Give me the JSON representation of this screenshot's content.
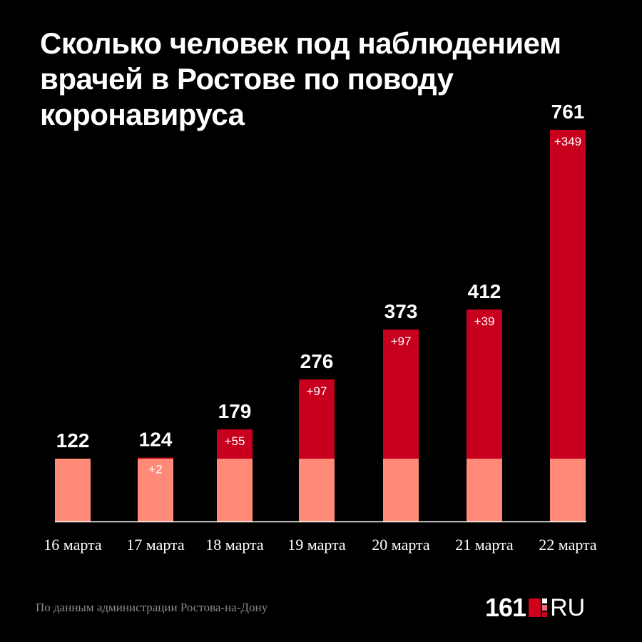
{
  "title": "Сколько человек под наблюдением врачей в Ростове по поводу коронавируса",
  "source": "По данным администрации Ростова-на-Дону",
  "logo": {
    "number": "161",
    "domain": "RU"
  },
  "colors": {
    "base": "#ff8a78",
    "increase": "#c8001e",
    "background": "#000000",
    "axis": "#ffffff"
  },
  "chart_data": {
    "type": "bar",
    "stacked": true,
    "categories": [
      "16 марта",
      "17 марта",
      "18 марта",
      "19 марта",
      "20 марта",
      "21 марта",
      "22 марта"
    ],
    "totals": [
      122,
      124,
      179,
      276,
      373,
      412,
      761
    ],
    "series": [
      {
        "values": [
          122,
          122,
          122,
          122,
          122,
          122,
          122
        ]
      },
      {
        "values": [
          0,
          2,
          57,
          154,
          251,
          290,
          639
        ]
      }
    ],
    "increase_labels": [
      "",
      "+2",
      "+55",
      "+97",
      "+97",
      "+39",
      "+349"
    ],
    "ylim": [
      0,
      761
    ]
  }
}
